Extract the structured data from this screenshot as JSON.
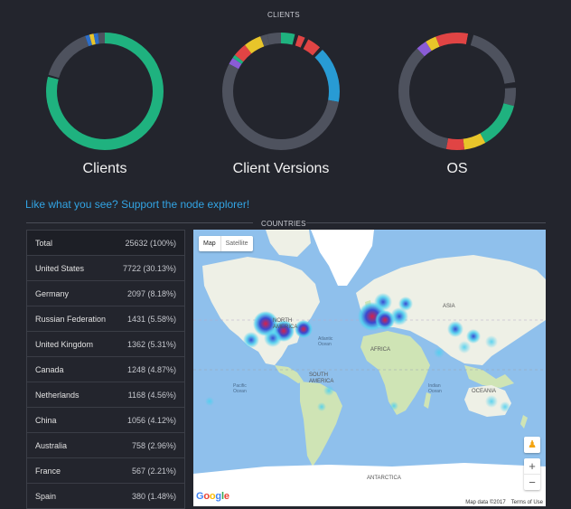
{
  "sections": {
    "clients_title": "CLIENTS",
    "countries_title": "COUNTRIES"
  },
  "donuts": [
    {
      "label": "Clients",
      "segments": [
        {
          "value": 0.79,
          "color": "#1fb27f"
        },
        {
          "value": 0.005,
          "color": "#23252d"
        },
        {
          "value": 0.15,
          "color": "#4e525e"
        },
        {
          "value": 0.012,
          "color": "#2d6ec8"
        },
        {
          "value": 0.012,
          "color": "#e8c52a"
        },
        {
          "value": 0.012,
          "color": "#2d6ec8"
        },
        {
          "value": 0.019,
          "color": "#4e525e"
        }
      ]
    },
    {
      "label": "Client Versions",
      "segments": [
        {
          "value": 0.04,
          "color": "#1fb27f"
        },
        {
          "value": 0.01,
          "color": "#23252d"
        },
        {
          "value": 0.02,
          "color": "#e04444"
        },
        {
          "value": 0.01,
          "color": "#23252d"
        },
        {
          "value": 0.04,
          "color": "#e04444"
        },
        {
          "value": 0.01,
          "color": "#23252d"
        },
        {
          "value": 0.16,
          "color": "#289bd4"
        },
        {
          "value": 0.57,
          "color": "#4e525e"
        },
        {
          "value": 0.02,
          "color": "#8a5cd6"
        },
        {
          "value": 0.01,
          "color": "#1fb27f"
        },
        {
          "value": 0.04,
          "color": "#e04444"
        },
        {
          "value": 0.05,
          "color": "#e8c52a"
        },
        {
          "value": 0.02,
          "color": "#4e525e"
        },
        {
          "value": 0.04,
          "color": "#4e525e"
        }
      ]
    },
    {
      "label": "OS",
      "segments": [
        {
          "value": 0.03,
          "color": "#e04444"
        },
        {
          "value": 0.015,
          "color": "#23252d"
        },
        {
          "value": 0.18,
          "color": "#4e525e"
        },
        {
          "value": 0.015,
          "color": "#23252d"
        },
        {
          "value": 0.05,
          "color": "#4e525e"
        },
        {
          "value": 0.13,
          "color": "#1fb27f"
        },
        {
          "value": 0.06,
          "color": "#e8c52a"
        },
        {
          "value": 0.05,
          "color": "#e04444"
        },
        {
          "value": 0.35,
          "color": "#4e525e"
        },
        {
          "value": 0.03,
          "color": "#8a5cd6"
        },
        {
          "value": 0.03,
          "color": "#e8c52a"
        },
        {
          "value": 0.06,
          "color": "#e04444"
        }
      ]
    }
  ],
  "support_link": "Like what you see? Support the node explorer!",
  "countries": [
    {
      "name": "Total",
      "value": "25632 (100%)"
    },
    {
      "name": "United States",
      "value": "7722 (30.13%)"
    },
    {
      "name": "Germany",
      "value": "2097 (8.18%)"
    },
    {
      "name": "Russian Federation",
      "value": "1431 (5.58%)"
    },
    {
      "name": "United Kingdom",
      "value": "1362 (5.31%)"
    },
    {
      "name": "Canada",
      "value": "1248 (4.87%)"
    },
    {
      "name": "Netherlands",
      "value": "1168 (4.56%)"
    },
    {
      "name": "China",
      "value": "1056 (4.12%)"
    },
    {
      "name": "Australia",
      "value": "758 (2.96%)"
    },
    {
      "name": "France",
      "value": "567 (2.21%)"
    },
    {
      "name": "Spain",
      "value": "380 (1.48%)"
    }
  ],
  "map": {
    "btn_map": "Map",
    "btn_satellite": "Satellite",
    "labels": {
      "north_america": "NORTH AMERICA",
      "south_america": "SOUTH AMERICA",
      "africa": "AFRICA",
      "asia": "ASIA",
      "oceania": "OCEANIA",
      "antarctica": "ANTARCTICA",
      "atlantic": "Atlantic Ocean",
      "pacific": "Pacific Ocean",
      "indian": "Indian Ocean"
    },
    "zoom_in": "+",
    "zoom_out": "−",
    "pegman": "♟",
    "attribution_data": "Map data ©2017",
    "attribution_terms": "Terms of Use",
    "google": "Google",
    "colors": {
      "water": "#8fc0ec",
      "land": "#eef0e6",
      "green": "#cfe4b5",
      "ice": "#ffffff",
      "heat_hi": "#d4224a",
      "heat_mid": "#3a4ad0",
      "heat_lo": "#4fd0f0"
    }
  }
}
